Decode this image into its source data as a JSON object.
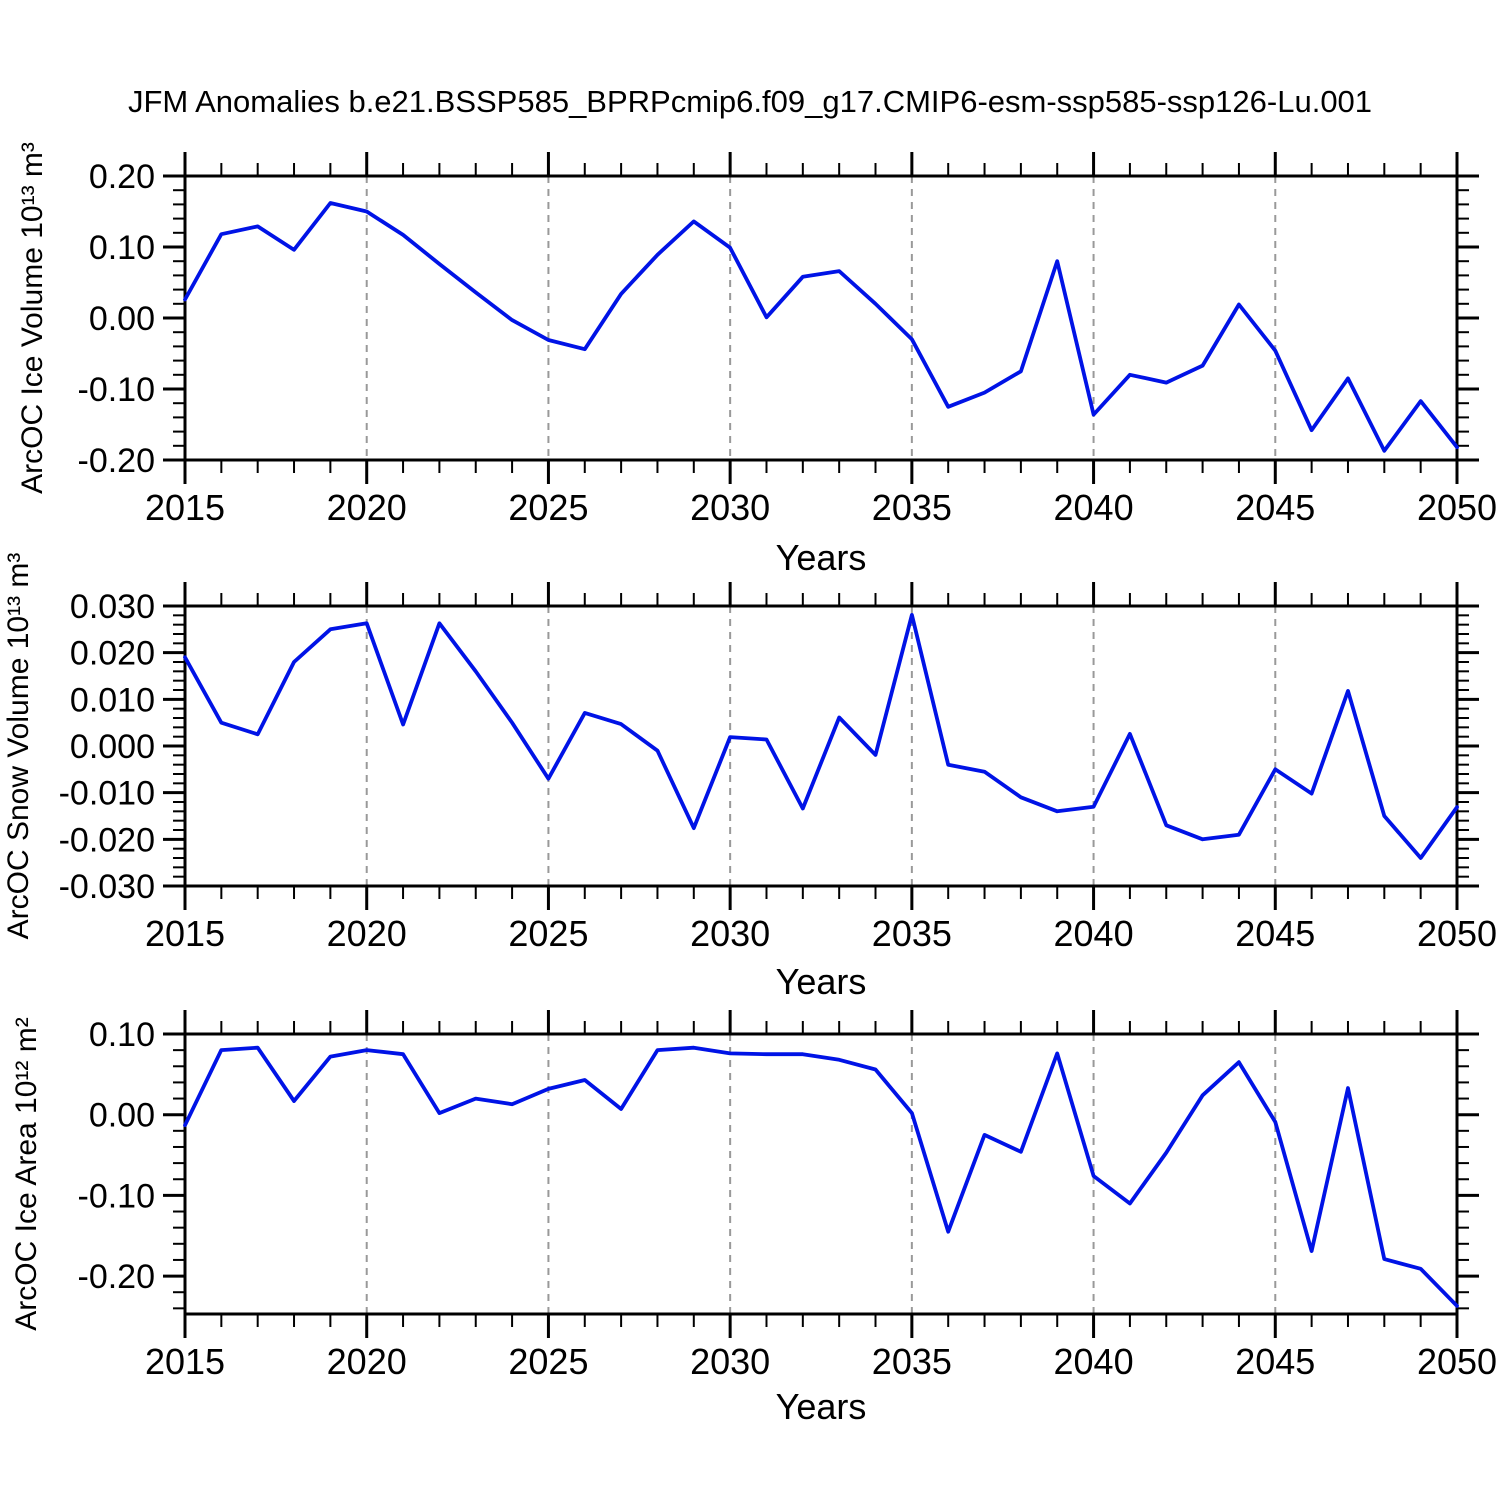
{
  "title": "JFM Anomalies b.e21.BSSP585_BPRPcmip6.f09_g17.CMIP6-esm-ssp585-ssp126-Lu.001",
  "colors": {
    "line": "#0013e6",
    "frame": "#000000",
    "gridline": "#999999",
    "text": "#000000"
  },
  "x_axis": {
    "label": "Years",
    "min": 2015,
    "max": 2050,
    "major_ticks": [
      2015,
      2020,
      2025,
      2030,
      2035,
      2040,
      2045,
      2050
    ],
    "major_tick_labels": [
      "2015",
      "2020",
      "2025",
      "2030",
      "2035",
      "2040",
      "2045",
      "2050"
    ],
    "minor_step": 1,
    "dashed_gridlines": [
      2020,
      2025,
      2030,
      2035,
      2040,
      2045
    ]
  },
  "years": [
    2015,
    2016,
    2017,
    2018,
    2019,
    2020,
    2021,
    2022,
    2023,
    2024,
    2025,
    2026,
    2027,
    2028,
    2029,
    2030,
    2031,
    2032,
    2033,
    2034,
    2035,
    2036,
    2037,
    2038,
    2039,
    2040,
    2041,
    2042,
    2043,
    2044,
    2045,
    2046,
    2047,
    2048,
    2049,
    2050
  ],
  "chart_data": [
    {
      "type": "line",
      "name": "ice-volume",
      "ylabel": "ArcOC Ice Volume 10¹³ m³",
      "xlabel": "Years",
      "ylim": [
        -0.2,
        0.2
      ],
      "y_ticks": [
        {
          "value": 0.2,
          "label": "0.20"
        },
        {
          "value": 0.1,
          "label": "0.10"
        },
        {
          "value": 0.0,
          "label": "0.00"
        },
        {
          "value": -0.1,
          "label": "-0.10"
        },
        {
          "value": -0.2,
          "label": "-0.20"
        }
      ],
      "y_major_step": 0.1,
      "y_minor_step": 0.02,
      "values": [
        0.026,
        0.118,
        0.129,
        0.096,
        0.162,
        0.15,
        0.117,
        0.076,
        0.036,
        -0.003,
        -0.031,
        -0.044,
        0.034,
        0.089,
        0.136,
        0.099,
        0.001,
        0.058,
        0.066,
        0.02,
        -0.03,
        -0.125,
        -0.105,
        -0.075,
        0.08,
        -0.136,
        -0.08,
        -0.091,
        -0.067,
        0.019,
        -0.046,
        -0.158,
        -0.085,
        -0.187,
        -0.117,
        -0.182
      ]
    },
    {
      "type": "line",
      "name": "snow-volume",
      "ylabel": "ArcOC Snow Volume 10¹³ m³",
      "xlabel": "Years",
      "ylim": [
        -0.03,
        0.03
      ],
      "y_ticks": [
        {
          "value": 0.03,
          "label": "0.030"
        },
        {
          "value": 0.02,
          "label": "0.020"
        },
        {
          "value": 0.01,
          "label": "0.010"
        },
        {
          "value": 0.0,
          "label": "0.000"
        },
        {
          "value": -0.01,
          "label": "-0.010"
        },
        {
          "value": -0.02,
          "label": "-0.020"
        },
        {
          "value": -0.03,
          "label": "-0.030"
        }
      ],
      "y_major_step": 0.01,
      "y_minor_step": 0.002,
      "values": [
        0.019,
        0.005,
        0.0025,
        0.018,
        0.025,
        0.0263,
        0.0046,
        0.0263,
        0.016,
        0.005,
        -0.007,
        0.0071,
        0.0047,
        -0.001,
        -0.0176,
        0.0019,
        0.0014,
        -0.0134,
        0.0061,
        -0.0019,
        0.0281,
        -0.004,
        -0.0055,
        -0.011,
        -0.014,
        -0.013,
        0.0026,
        -0.017,
        -0.02,
        -0.019,
        -0.005,
        -0.0102,
        0.0118,
        -0.015,
        -0.024,
        -0.0131
      ]
    },
    {
      "type": "line",
      "name": "ice-area",
      "ylabel": "ArcOC Ice Area 10¹² m²",
      "xlabel": "Years",
      "ylim": [
        -0.247,
        0.1
      ],
      "y_ticks": [
        {
          "value": 0.1,
          "label": "0.10"
        },
        {
          "value": 0.0,
          "label": "0.00"
        },
        {
          "value": -0.1,
          "label": "-0.10"
        },
        {
          "value": -0.2,
          "label": "-0.20"
        }
      ],
      "y_major_step": 0.1,
      "y_minor_step": 0.02,
      "values": [
        -0.013,
        0.08,
        0.083,
        0.017,
        0.072,
        0.08,
        0.075,
        0.002,
        0.02,
        0.013,
        0.032,
        0.043,
        0.007,
        0.08,
        0.083,
        0.076,
        0.075,
        0.075,
        0.068,
        0.056,
        0.002,
        -0.145,
        -0.025,
        -0.046,
        0.076,
        -0.076,
        -0.11,
        -0.047,
        0.024,
        0.065,
        -0.009,
        -0.169,
        0.033,
        -0.179,
        -0.191,
        -0.237
      ]
    }
  ]
}
